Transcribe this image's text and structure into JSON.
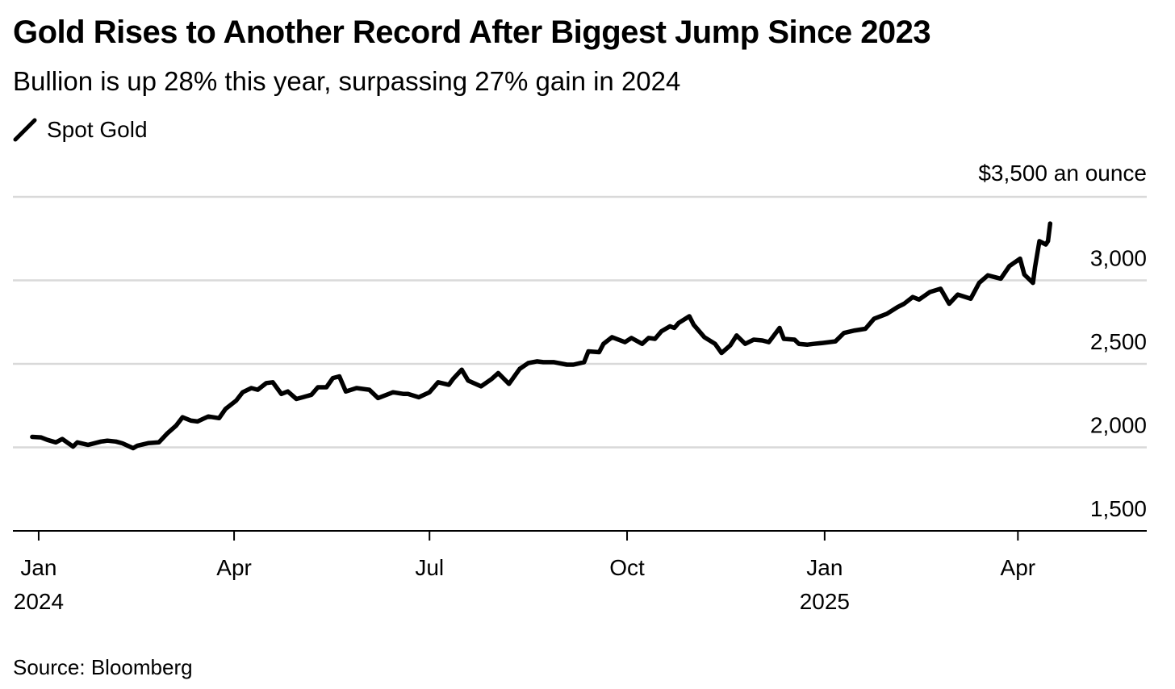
{
  "chart_data": {
    "type": "line",
    "title": "Gold Rises to Another Record After Biggest Jump Since 2023",
    "subtitle": "Bullion is up 28% this year, surpassing 27% gain in 2024",
    "source": "Source: Bloomberg",
    "y_unit_label": "$3,500 an ounce",
    "ylim": [
      1500,
      3500
    ],
    "y_ticks": [
      {
        "value": 1500,
        "label": "1,500"
      },
      {
        "value": 2000,
        "label": "2,000"
      },
      {
        "value": 2500,
        "label": "2,500"
      },
      {
        "value": 3000,
        "label": "3,000"
      },
      {
        "value": 3500,
        "label": ""
      }
    ],
    "xlim": [
      "2023-12-20",
      "2025-05-31"
    ],
    "x_ticks": [
      {
        "date": "2024-01-01",
        "label": "Jan",
        "sublabel": "2024"
      },
      {
        "date": "2024-04-01",
        "label": "Apr",
        "sublabel": ""
      },
      {
        "date": "2024-07-01",
        "label": "Jul",
        "sublabel": ""
      },
      {
        "date": "2024-10-01",
        "label": "Oct",
        "sublabel": ""
      },
      {
        "date": "2025-01-01",
        "label": "Jan",
        "sublabel": "2025"
      },
      {
        "date": "2025-04-01",
        "label": "Apr",
        "sublabel": ""
      }
    ],
    "grid": true,
    "legend": "top-left",
    "colors": {
      "line": "#000000",
      "grid": "#d9d9d9",
      "axis": "#000000"
    },
    "series": [
      {
        "name": "Spot Gold",
        "points": [
          [
            "2023-12-29",
            2063
          ],
          [
            "2024-01-02",
            2060
          ],
          [
            "2024-01-05",
            2045
          ],
          [
            "2024-01-09",
            2030
          ],
          [
            "2024-01-12",
            2050
          ],
          [
            "2024-01-17",
            2005
          ],
          [
            "2024-01-19",
            2030
          ],
          [
            "2024-01-24",
            2015
          ],
          [
            "2024-01-30",
            2035
          ],
          [
            "2024-02-02",
            2040
          ],
          [
            "2024-02-06",
            2035
          ],
          [
            "2024-02-09",
            2024
          ],
          [
            "2024-02-14",
            1995
          ],
          [
            "2024-02-16",
            2010
          ],
          [
            "2024-02-21",
            2025
          ],
          [
            "2024-02-26",
            2030
          ],
          [
            "2024-03-01",
            2085
          ],
          [
            "2024-03-05",
            2130
          ],
          [
            "2024-03-08",
            2180
          ],
          [
            "2024-03-12",
            2160
          ],
          [
            "2024-03-15",
            2155
          ],
          [
            "2024-03-20",
            2185
          ],
          [
            "2024-03-25",
            2175
          ],
          [
            "2024-03-28",
            2230
          ],
          [
            "2024-04-02",
            2280
          ],
          [
            "2024-04-05",
            2330
          ],
          [
            "2024-04-09",
            2355
          ],
          [
            "2024-04-12",
            2345
          ],
          [
            "2024-04-16",
            2385
          ],
          [
            "2024-04-19",
            2390
          ],
          [
            "2024-04-23",
            2320
          ],
          [
            "2024-04-26",
            2335
          ],
          [
            "2024-04-30",
            2290
          ],
          [
            "2024-05-03",
            2300
          ],
          [
            "2024-05-07",
            2315
          ],
          [
            "2024-05-10",
            2360
          ],
          [
            "2024-05-14",
            2360
          ],
          [
            "2024-05-17",
            2415
          ],
          [
            "2024-05-20",
            2425
          ],
          [
            "2024-05-23",
            2335
          ],
          [
            "2024-05-28",
            2355
          ],
          [
            "2024-06-03",
            2345
          ],
          [
            "2024-06-07",
            2295
          ],
          [
            "2024-06-12",
            2320
          ],
          [
            "2024-06-14",
            2330
          ],
          [
            "2024-06-19",
            2320
          ],
          [
            "2024-06-21",
            2320
          ],
          [
            "2024-06-26",
            2300
          ],
          [
            "2024-07-01",
            2330
          ],
          [
            "2024-07-05",
            2390
          ],
          [
            "2024-07-10",
            2375
          ],
          [
            "2024-07-12",
            2410
          ],
          [
            "2024-07-16",
            2465
          ],
          [
            "2024-07-19",
            2400
          ],
          [
            "2024-07-25",
            2365
          ],
          [
            "2024-07-30",
            2410
          ],
          [
            "2024-08-02",
            2445
          ],
          [
            "2024-08-07",
            2380
          ],
          [
            "2024-08-12",
            2470
          ],
          [
            "2024-08-16",
            2505
          ],
          [
            "2024-08-20",
            2515
          ],
          [
            "2024-08-23",
            2510
          ],
          [
            "2024-08-28",
            2510
          ],
          [
            "2024-09-03",
            2495
          ],
          [
            "2024-09-06",
            2495
          ],
          [
            "2024-09-11",
            2510
          ],
          [
            "2024-09-13",
            2575
          ],
          [
            "2024-09-18",
            2570
          ],
          [
            "2024-09-20",
            2620
          ],
          [
            "2024-09-24",
            2660
          ],
          [
            "2024-09-30",
            2630
          ],
          [
            "2024-10-03",
            2655
          ],
          [
            "2024-10-08",
            2620
          ],
          [
            "2024-10-11",
            2655
          ],
          [
            "2024-10-14",
            2650
          ],
          [
            "2024-10-17",
            2695
          ],
          [
            "2024-10-21",
            2725
          ],
          [
            "2024-10-23",
            2715
          ],
          [
            "2024-10-25",
            2745
          ],
          [
            "2024-10-30",
            2785
          ],
          [
            "2024-11-01",
            2735
          ],
          [
            "2024-11-06",
            2660
          ],
          [
            "2024-11-11",
            2620
          ],
          [
            "2024-11-14",
            2565
          ],
          [
            "2024-11-18",
            2610
          ],
          [
            "2024-11-21",
            2670
          ],
          [
            "2024-11-25",
            2620
          ],
          [
            "2024-11-29",
            2645
          ],
          [
            "2024-12-03",
            2640
          ],
          [
            "2024-12-06",
            2630
          ],
          [
            "2024-12-11",
            2715
          ],
          [
            "2024-12-13",
            2650
          ],
          [
            "2024-12-18",
            2645
          ],
          [
            "2024-12-20",
            2620
          ],
          [
            "2024-12-24",
            2615
          ],
          [
            "2024-12-27",
            2620
          ],
          [
            "2024-12-31",
            2625
          ],
          [
            "2025-01-06",
            2635
          ],
          [
            "2025-01-10",
            2685
          ],
          [
            "2025-01-15",
            2700
          ],
          [
            "2025-01-20",
            2710
          ],
          [
            "2025-01-24",
            2770
          ],
          [
            "2025-01-30",
            2800
          ],
          [
            "2025-02-04",
            2840
          ],
          [
            "2025-02-07",
            2860
          ],
          [
            "2025-02-11",
            2900
          ],
          [
            "2025-02-14",
            2885
          ],
          [
            "2025-02-19",
            2930
          ],
          [
            "2025-02-24",
            2950
          ],
          [
            "2025-02-28",
            2860
          ],
          [
            "2025-03-04",
            2915
          ],
          [
            "2025-03-10",
            2890
          ],
          [
            "2025-03-14",
            2985
          ],
          [
            "2025-03-18",
            3030
          ],
          [
            "2025-03-24",
            3010
          ],
          [
            "2025-03-28",
            3085
          ],
          [
            "2025-04-02",
            3130
          ],
          [
            "2025-04-04",
            3035
          ],
          [
            "2025-04-08",
            2985
          ],
          [
            "2025-04-09",
            3080
          ],
          [
            "2025-04-11",
            3235
          ],
          [
            "2025-04-14",
            3215
          ],
          [
            "2025-04-15",
            3235
          ],
          [
            "2025-04-16",
            3340
          ]
        ]
      }
    ]
  }
}
